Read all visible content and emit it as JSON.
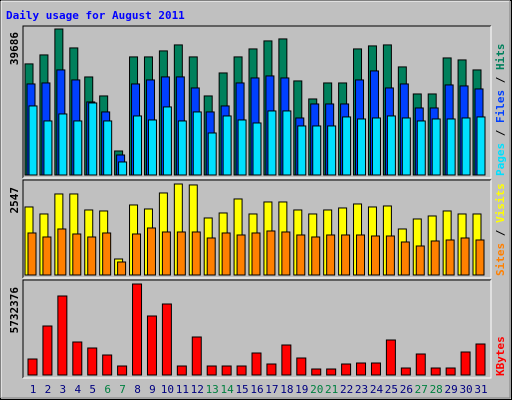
{
  "title": "Daily usage for August 2011",
  "legend_separator": " / ",
  "chart_data": [
    {
      "type": "bar",
      "ylim": [
        0,
        39686
      ],
      "yticks": [
        39686
      ],
      "series": [
        {
          "name": "Hits",
          "color": "#00805c",
          "values": [
            30200,
            32640,
            39686,
            34540,
            26650,
            21490,
            6530,
            32100,
            32100,
            33730,
            35360,
            32100,
            21490,
            27740,
            32100,
            34270,
            36450,
            36990,
            25570,
            20670,
            25020,
            25020,
            34270,
            35090,
            35360,
            29380,
            22030,
            22030,
            31820,
            31280,
            28560
          ]
        },
        {
          "name": "Files",
          "color": "#0040ff",
          "values": [
            24750,
            25020,
            28560,
            25840,
            19860,
            17140,
            5440,
            24750,
            25840,
            26660,
            26660,
            23660,
            17140,
            18770,
            25020,
            26380,
            26930,
            26380,
            15500,
            19310,
            19310,
            19310,
            25840,
            28290,
            23660,
            24750,
            18220,
            18220,
            24480,
            24210,
            23390
          ]
        },
        {
          "name": "Pages",
          "color": "#00e0ff",
          "values": [
            18770,
            14690,
            16590,
            14690,
            19580,
            14690,
            3540,
            16050,
            14960,
            18500,
            14690,
            17140,
            11420,
            16050,
            14960,
            14140,
            17410,
            17410,
            13330,
            13330,
            13330,
            15780,
            15230,
            15500,
            16050,
            15500,
            14690,
            15230,
            15230,
            15500,
            15780
          ]
        }
      ]
    },
    {
      "type": "bar",
      "ylim": [
        0,
        2547
      ],
      "yticks": [
        2547
      ],
      "series": [
        {
          "name": "Visits",
          "color": "#ffff00",
          "values": [
            1904,
            1708,
            2268,
            2268,
            1820,
            1792,
            448,
            1960,
            1848,
            2296,
            2547,
            2520,
            1596,
            1736,
            2128,
            1708,
            2044,
            2044,
            1820,
            1708,
            1820,
            1876,
            1988,
            1904,
            1932,
            1288,
            1568,
            1652,
            1792,
            1708,
            1708
          ]
        },
        {
          "name": "Sites",
          "color": "#ff8000",
          "values": [
            1176,
            1064,
            1288,
            1148,
            1064,
            1176,
            364,
            1148,
            1316,
            1204,
            1204,
            1204,
            1036,
            1176,
            1120,
            1176,
            1232,
            1204,
            1120,
            1064,
            1120,
            1120,
            1120,
            1092,
            1092,
            924,
            812,
            952,
            980,
            1036,
            980
          ]
        }
      ]
    },
    {
      "type": "bar",
      "ylim": [
        0,
        5732376
      ],
      "yticks": [
        5732376
      ],
      "categories": [
        "1",
        "2",
        "3",
        "4",
        "5",
        "6",
        "7",
        "8",
        "9",
        "10",
        "11",
        "12",
        "13",
        "14",
        "15",
        "16",
        "17",
        "18",
        "19",
        "20",
        "21",
        "22",
        "23",
        "24",
        "25",
        "26",
        "27",
        "28",
        "29",
        "30",
        "31"
      ],
      "label_colors": [
        "#000080",
        "#000080",
        "#000080",
        "#000080",
        "#000080",
        "#008040",
        "#008040",
        "#000080",
        "#000080",
        "#000080",
        "#000080",
        "#000080",
        "#008040",
        "#008040",
        "#000080",
        "#000080",
        "#000080",
        "#000080",
        "#000080",
        "#008040",
        "#008040",
        "#000080",
        "#000080",
        "#000080",
        "#000080",
        "#000080",
        "#008040",
        "#008040",
        "#000080",
        "#000080",
        "#000080"
      ],
      "series": [
        {
          "name": "KBytes",
          "color": "#ff0000",
          "values": [
            1008000,
            3087000,
            4977000,
            2079000,
            1701000,
            1260000,
            567000,
            5732376,
            3717000,
            4473000,
            567000,
            2394000,
            567000,
            567000,
            567000,
            1386000,
            693000,
            1890000,
            1071000,
            378000,
            378000,
            693000,
            756000,
            756000,
            2205000,
            441000,
            1323000,
            441000,
            441000,
            1449000,
            1953000
          ]
        }
      ]
    }
  ]
}
